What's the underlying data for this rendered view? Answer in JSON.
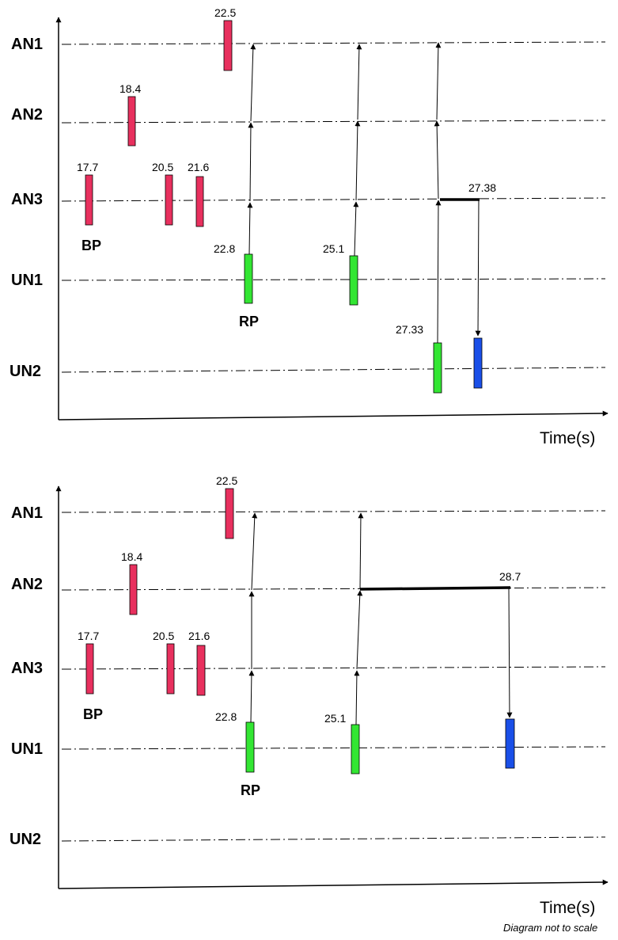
{
  "colors": {
    "event_bar": "#e8305e",
    "node_bar": "#33e633",
    "final_bar": "#1a4fe8",
    "line": "#000000"
  },
  "panels": [
    {
      "lanes": [
        "AN1",
        "AN2",
        "AN3",
        "UN1",
        "UN2"
      ],
      "values": {
        "v1": "17.7",
        "v2": "18.4",
        "v3": "20.5",
        "v4": "21.6",
        "v5": "22.5",
        "v6": "22.8",
        "v7": "25.1",
        "v8": "27.33",
        "v9": "27.38"
      },
      "phase_labels": {
        "bp": "BP",
        "rp": "RP"
      },
      "time_label": "Time(s)"
    },
    {
      "lanes": [
        "AN1",
        "AN2",
        "AN3",
        "UN1",
        "UN2"
      ],
      "values": {
        "v1": "17.7",
        "v2": "18.4",
        "v3": "20.5",
        "v4": "21.6",
        "v5": "22.5",
        "v6": "22.8",
        "v7": "25.1",
        "v8": "28.7"
      },
      "phase_labels": {
        "bp": "BP",
        "rp": "RP"
      },
      "time_label": "Time(s)"
    }
  ],
  "footnote": "Diagram not to scale"
}
